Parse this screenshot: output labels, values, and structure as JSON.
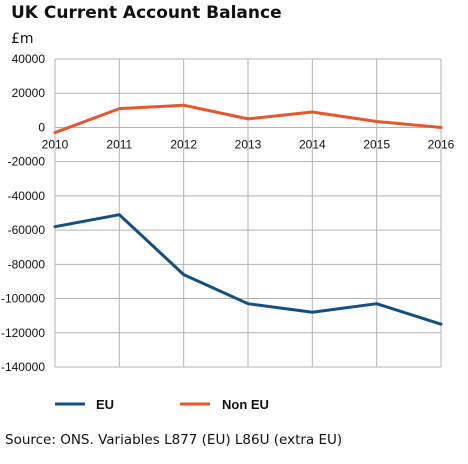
{
  "title": "UK Current Account Balance",
  "unit_label": "£m",
  "source": "Source: ONS.  Variables L877 (EU)  L86U (extra EU)",
  "chart_data": {
    "type": "line",
    "title": "UK Current Account Balance",
    "ylabel": "£m",
    "xlabel": "",
    "x": [
      "2010",
      "2011",
      "2012",
      "2013",
      "2014",
      "2015",
      "2016"
    ],
    "ylim": [
      -140000,
      40000
    ],
    "yticks": [
      40000,
      20000,
      0,
      -20000,
      -40000,
      -60000,
      -80000,
      -100000,
      -120000,
      -140000
    ],
    "grid": true,
    "legend_position": "bottom",
    "series": [
      {
        "name": "EU",
        "color": "#114f85",
        "values": [
          -58000,
          -51000,
          -86000,
          -103000,
          -108000,
          -103000,
          -115000
        ]
      },
      {
        "name": "Non EU",
        "color": "#e8562a",
        "values": [
          -3000,
          11000,
          13000,
          5000,
          9000,
          3500,
          0
        ]
      }
    ]
  }
}
